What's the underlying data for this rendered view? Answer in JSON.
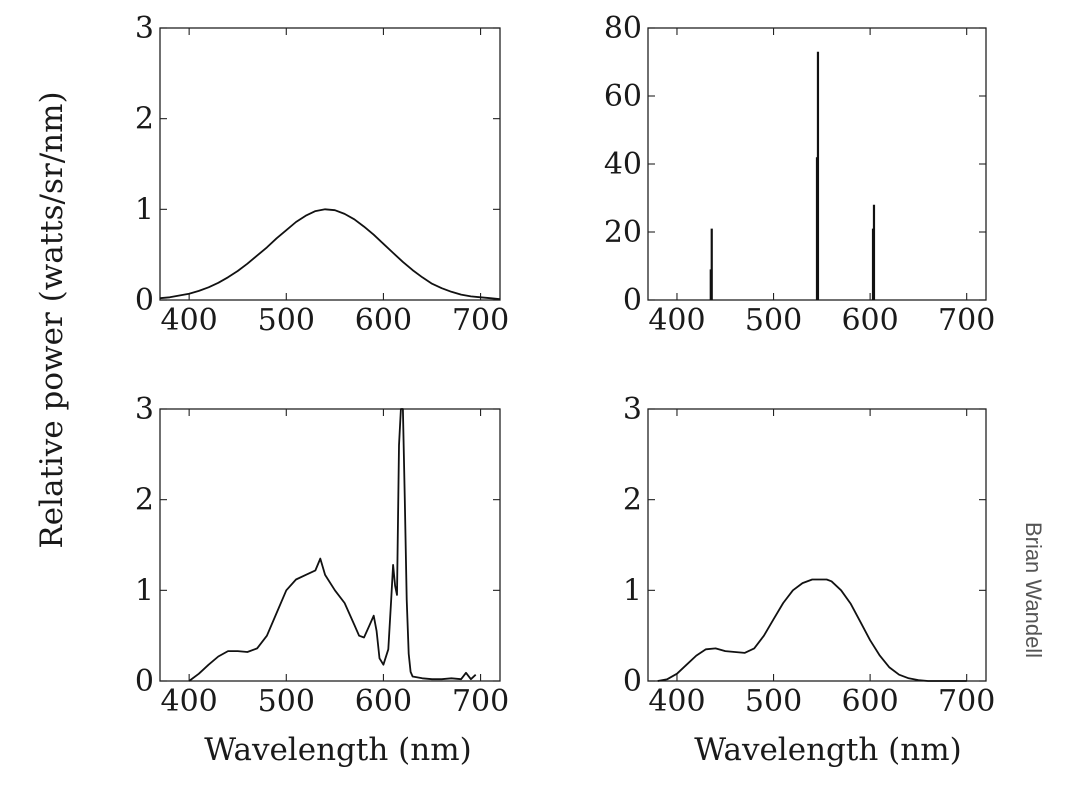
{
  "figure": {
    "ylabel": "Relative power (watts/sr/nm)",
    "xlabel": "Wavelength (nm)",
    "credit": "Brian Wandell",
    "colors": {
      "line": "#111111",
      "background": "#ffffff",
      "credit": "#555555"
    }
  },
  "chart_data": [
    {
      "type": "line",
      "title": "",
      "xlabel": "",
      "ylabel": "Relative power (watts/sr/nm)",
      "xlim": [
        370,
        720
      ],
      "ylim": [
        0,
        3
      ],
      "xticks": [
        400,
        500,
        600,
        700
      ],
      "yticks": [
        0,
        1,
        2,
        3
      ],
      "grid": false,
      "series": [
        {
          "x": [
            370,
            380,
            390,
            400,
            410,
            420,
            430,
            440,
            450,
            460,
            470,
            480,
            490,
            500,
            510,
            520,
            530,
            540,
            550,
            560,
            570,
            580,
            590,
            600,
            610,
            620,
            630,
            640,
            650,
            660,
            670,
            680,
            690,
            700,
            710,
            720
          ],
          "values": [
            0.02,
            0.03,
            0.05,
            0.07,
            0.1,
            0.14,
            0.19,
            0.25,
            0.32,
            0.4,
            0.49,
            0.58,
            0.68,
            0.77,
            0.86,
            0.93,
            0.98,
            1.0,
            0.99,
            0.95,
            0.89,
            0.81,
            0.72,
            0.62,
            0.52,
            0.42,
            0.33,
            0.25,
            0.18,
            0.13,
            0.09,
            0.06,
            0.04,
            0.03,
            0.02,
            0.01
          ]
        }
      ]
    },
    {
      "type": "bar",
      "title": "",
      "xlabel": "",
      "ylabel": "",
      "xlim": [
        370,
        720
      ],
      "ylim": [
        0,
        80
      ],
      "xticks": [
        400,
        500,
        600,
        700
      ],
      "yticks": [
        0,
        20,
        40,
        60,
        80
      ],
      "grid": false,
      "series": [
        {
          "x": [
            436,
            546,
            604
          ],
          "values": [
            21,
            73,
            28
          ]
        },
        {
          "x": [
            435,
            545,
            603
          ],
          "values": [
            9,
            42,
            21
          ]
        }
      ]
    },
    {
      "type": "line",
      "title": "",
      "xlabel": "Wavelength (nm)",
      "ylabel": "",
      "xlim": [
        370,
        720
      ],
      "ylim": [
        0,
        3
      ],
      "xticks": [
        400,
        500,
        600,
        700
      ],
      "yticks": [
        0,
        1,
        2,
        3
      ],
      "grid": false,
      "series": [
        {
          "x": [
            400,
            410,
            420,
            430,
            440,
            450,
            460,
            470,
            480,
            490,
            500,
            510,
            520,
            530,
            535,
            540,
            550,
            560,
            570,
            575,
            580,
            585,
            590,
            593,
            596,
            600,
            605,
            608,
            610,
            612,
            614,
            616,
            618,
            620,
            622,
            624,
            626,
            628,
            630,
            640,
            650,
            660,
            670,
            680,
            685,
            690,
            695
          ],
          "values": [
            0.0,
            0.08,
            0.18,
            0.27,
            0.33,
            0.33,
            0.32,
            0.36,
            0.5,
            0.75,
            1.0,
            1.12,
            1.17,
            1.22,
            1.35,
            1.17,
            1.0,
            0.86,
            0.62,
            0.5,
            0.48,
            0.6,
            0.72,
            0.55,
            0.25,
            0.18,
            0.35,
            0.9,
            1.28,
            1.05,
            0.95,
            2.6,
            3.0,
            3.0,
            2.0,
            0.9,
            0.3,
            0.1,
            0.05,
            0.03,
            0.02,
            0.02,
            0.03,
            0.02,
            0.09,
            0.02,
            0.07
          ]
        }
      ]
    },
    {
      "type": "line",
      "title": "",
      "xlabel": "Wavelength (nm)",
      "ylabel": "",
      "xlim": [
        370,
        720
      ],
      "ylim": [
        0,
        3
      ],
      "xticks": [
        400,
        500,
        600,
        700
      ],
      "yticks": [
        0,
        1,
        2,
        3
      ],
      "grid": false,
      "series": [
        {
          "x": [
            380,
            390,
            400,
            410,
            420,
            430,
            440,
            450,
            460,
            470,
            480,
            490,
            500,
            510,
            520,
            530,
            540,
            550,
            555,
            560,
            570,
            580,
            590,
            600,
            610,
            620,
            630,
            640,
            650,
            660,
            670,
            680,
            690,
            700
          ],
          "values": [
            0.0,
            0.02,
            0.08,
            0.18,
            0.28,
            0.35,
            0.36,
            0.33,
            0.32,
            0.31,
            0.36,
            0.5,
            0.68,
            0.86,
            1.0,
            1.08,
            1.12,
            1.12,
            1.12,
            1.1,
            1.0,
            0.85,
            0.65,
            0.45,
            0.28,
            0.15,
            0.07,
            0.03,
            0.01,
            0.0,
            0.0,
            0.0,
            0.0,
            0.0
          ]
        }
      ]
    }
  ]
}
